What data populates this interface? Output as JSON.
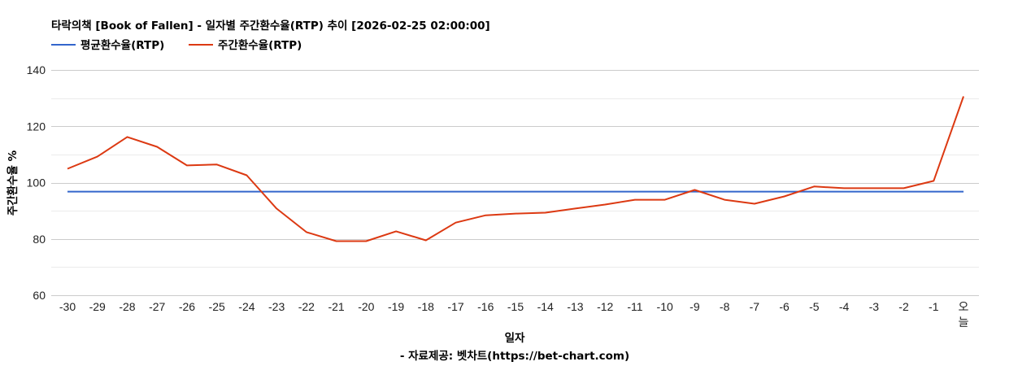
{
  "title": "타락의책 [Book of Fallen] - 일자별 주간환수율(RTP) 추이 [2026-02-25 02:00:00]",
  "legend": [
    {
      "label": "평균환수율(RTP)",
      "color": "#3366cc"
    },
    {
      "label": "주간환수율(RTP)",
      "color": "#dc3912"
    }
  ],
  "xaxis": {
    "title": "일자"
  },
  "yaxis": {
    "title": "주간환수율 %"
  },
  "source": "- 자료제공: 벳차트(https://bet-chart.com)",
  "chart_data": {
    "type": "line",
    "title": "타락의책 [Book of Fallen] - 일자별 주간환수율(RTP) 추이 [2026-02-25 02:00:00]",
    "xlabel": "일자",
    "ylabel": "주간환수율 %",
    "categories": [
      "-30",
      "-29",
      "-28",
      "-27",
      "-26",
      "-25",
      "-24",
      "-23",
      "-22",
      "-21",
      "-20",
      "-19",
      "-18",
      "-17",
      "-16",
      "-15",
      "-14",
      "-13",
      "-12",
      "-11",
      "-10",
      "-9",
      "-8",
      "-7",
      "-6",
      "-5",
      "-4",
      "-3",
      "-2",
      "-1",
      "오늘"
    ],
    "series": [
      {
        "name": "평균환수율(RTP)",
        "color": "#3366cc",
        "values": [
          96.8,
          96.8,
          96.8,
          96.8,
          96.8,
          96.8,
          96.8,
          96.8,
          96.8,
          96.8,
          96.8,
          96.8,
          96.8,
          96.8,
          96.8,
          96.8,
          96.8,
          96.8,
          96.8,
          96.8,
          96.8,
          96.8,
          96.8,
          96.8,
          96.8,
          96.8,
          96.8,
          96.8,
          96.8,
          96.8,
          96.8
        ]
      },
      {
        "name": "주간환수율(RTP)",
        "color": "#dc3912",
        "values": [
          104.9,
          109.2,
          116.2,
          112.7,
          106.1,
          106.4,
          102.6,
          90.8,
          82.4,
          79.2,
          79.2,
          82.7,
          79.5,
          85.8,
          88.4,
          89.0,
          89.3,
          90.8,
          92.2,
          93.9,
          93.9,
          97.4,
          93.9,
          92.5,
          95.1,
          98.6,
          98.0,
          98.0,
          98.0,
          100.6,
          130.6
        ]
      }
    ],
    "ylim": [
      60,
      140
    ],
    "yticks": [
      60,
      80,
      100,
      120,
      140
    ],
    "grid": true,
    "legend_position": "top-left"
  }
}
